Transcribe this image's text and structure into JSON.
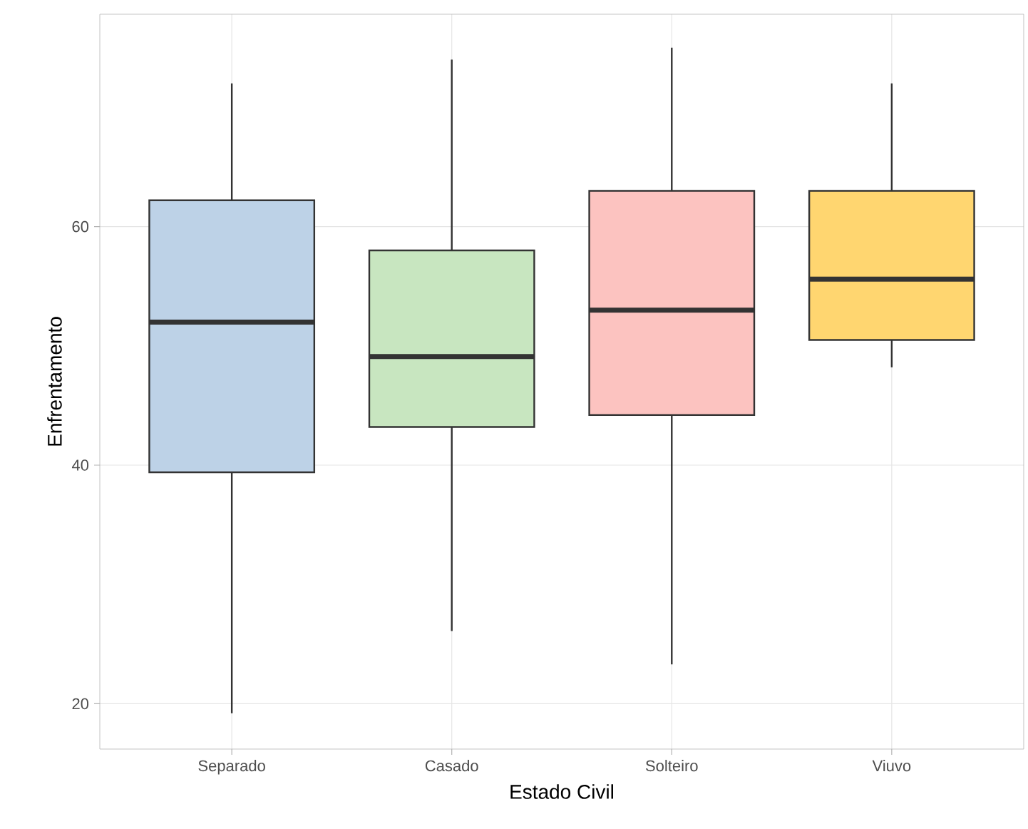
{
  "chart_data": {
    "type": "box",
    "xlabel": "Estado Civil",
    "ylabel": "Enfrentamento",
    "categories": [
      "Separado",
      "Casado",
      "Solteiro",
      "Viuvo"
    ],
    "boxes": [
      {
        "low": 19.2,
        "q1": 39.4,
        "median": 52.0,
        "q3": 62.2,
        "high": 72.0
      },
      {
        "low": 26.1,
        "q1": 43.2,
        "median": 49.1,
        "q3": 58.0,
        "high": 74.0
      },
      {
        "low": 23.3,
        "q1": 44.2,
        "median": 53.0,
        "q3": 63.0,
        "high": 75.0
      },
      {
        "low": 48.2,
        "q1": 50.5,
        "median": 55.6,
        "q3": 63.0,
        "high": 72.0
      }
    ],
    "colors": [
      "#bdd2e7",
      "#c8e6c0",
      "#fcc3c0",
      "#ffd670"
    ],
    "ylim": [
      16.2,
      77.8
    ],
    "yticks": [
      20,
      40,
      60
    ],
    "grid": true
  }
}
